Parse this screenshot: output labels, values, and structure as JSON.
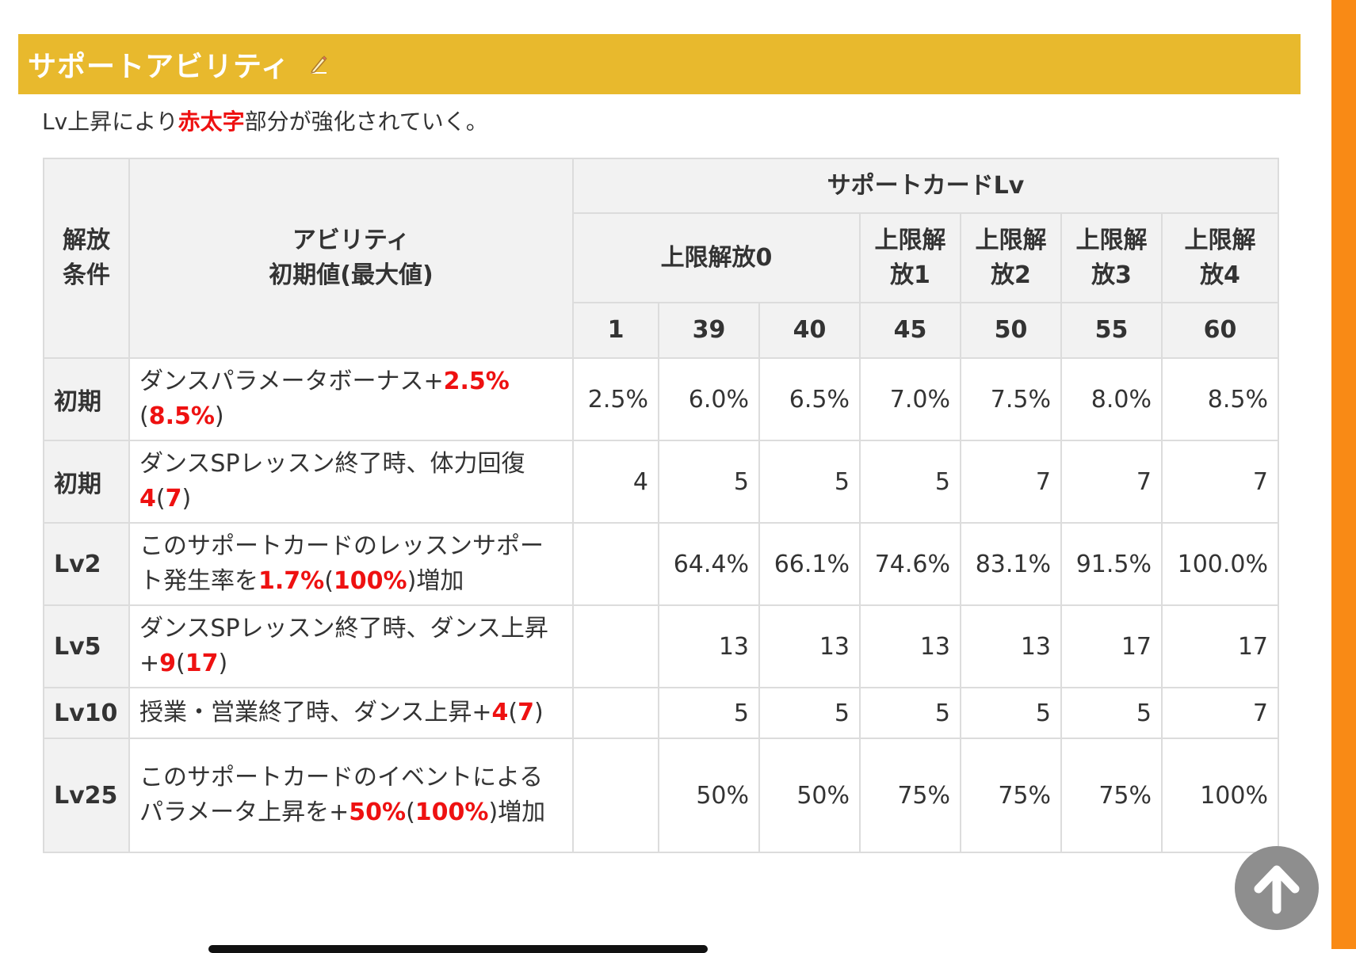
{
  "section": {
    "title": "サポートアビリティ",
    "edit_icon": "pencil-icon"
  },
  "intro": {
    "before": "Lv上昇により",
    "highlight": "赤太字",
    "after": "部分が強化されていく。"
  },
  "table": {
    "header": {
      "condition": [
        "解放",
        "条件"
      ],
      "ability": [
        "アビリティ",
        "初期値(最大値)"
      ],
      "card_lv": "サポートカードLv",
      "limit_breaks": [
        [
          "上限解放0"
        ],
        [
          "上限解",
          "放1"
        ],
        [
          "上限解",
          "放2"
        ],
        [
          "上限解",
          "放3"
        ],
        [
          "上限解",
          "放4"
        ]
      ],
      "levels": [
        "1",
        "39",
        "40",
        "45",
        "50",
        "55",
        "60"
      ]
    },
    "rows": [
      {
        "condition": "初期",
        "ability": [
          [
            "ダンスパラメータボーナス+",
            false
          ],
          [
            "2.5%",
            true
          ],
          [
            "(",
            false
          ],
          [
            "8.5%",
            true
          ],
          [
            ")",
            false
          ]
        ],
        "values": [
          "2.5%",
          "6.0%",
          "6.5%",
          "7.0%",
          "7.5%",
          "8.0%",
          "8.5%"
        ]
      },
      {
        "condition": "初期",
        "ability": [
          [
            "ダンスSPレッスン終了時、体力回復",
            false
          ],
          [
            "4",
            true
          ],
          [
            "(",
            false
          ],
          [
            "7",
            true
          ],
          [
            ")",
            false
          ]
        ],
        "values": [
          "4",
          "5",
          "5",
          "5",
          "7",
          "7",
          "7"
        ]
      },
      {
        "condition": "Lv2",
        "ability": [
          [
            "このサポートカードのレッスンサポート発生率を",
            false
          ],
          [
            "1.7%",
            true
          ],
          [
            "(",
            false
          ],
          [
            "100%",
            true
          ],
          [
            ")増加",
            false
          ]
        ],
        "values": [
          "",
          "64.4%",
          "66.1%",
          "74.6%",
          "83.1%",
          "91.5%",
          "100.0%"
        ]
      },
      {
        "condition": "Lv5",
        "ability": [
          [
            "ダンスSPレッスン終了時、ダンス上昇+",
            false
          ],
          [
            "9",
            true
          ],
          [
            "(",
            false
          ],
          [
            "17",
            true
          ],
          [
            ")",
            false
          ]
        ],
        "values": [
          "",
          "13",
          "13",
          "13",
          "13",
          "17",
          "17"
        ]
      },
      {
        "condition": "Lv10",
        "ability": [
          [
            "授業・営業終了時、ダンス上昇+",
            false
          ],
          [
            "4",
            true
          ],
          [
            "(",
            false
          ],
          [
            "7",
            true
          ],
          [
            ")",
            false
          ]
        ],
        "values": [
          "",
          "5",
          "5",
          "5",
          "5",
          "5",
          "7"
        ]
      },
      {
        "condition": "Lv25",
        "ability": [
          [
            "このサポートカードのイベントによるパラメータ上昇を+",
            false
          ],
          [
            "50%",
            true
          ],
          [
            "(",
            false
          ],
          [
            "100%",
            true
          ],
          [
            ")増加",
            false
          ]
        ],
        "values": [
          "",
          "50%",
          "50%",
          "75%",
          "75%",
          "75%",
          "100%"
        ]
      }
    ]
  },
  "scroll_top": {
    "icon": "arrow-up-icon"
  },
  "colors": {
    "header_bg": "#e8b92d",
    "accent_bar": "#f98a15",
    "highlight": "#ee1111"
  }
}
